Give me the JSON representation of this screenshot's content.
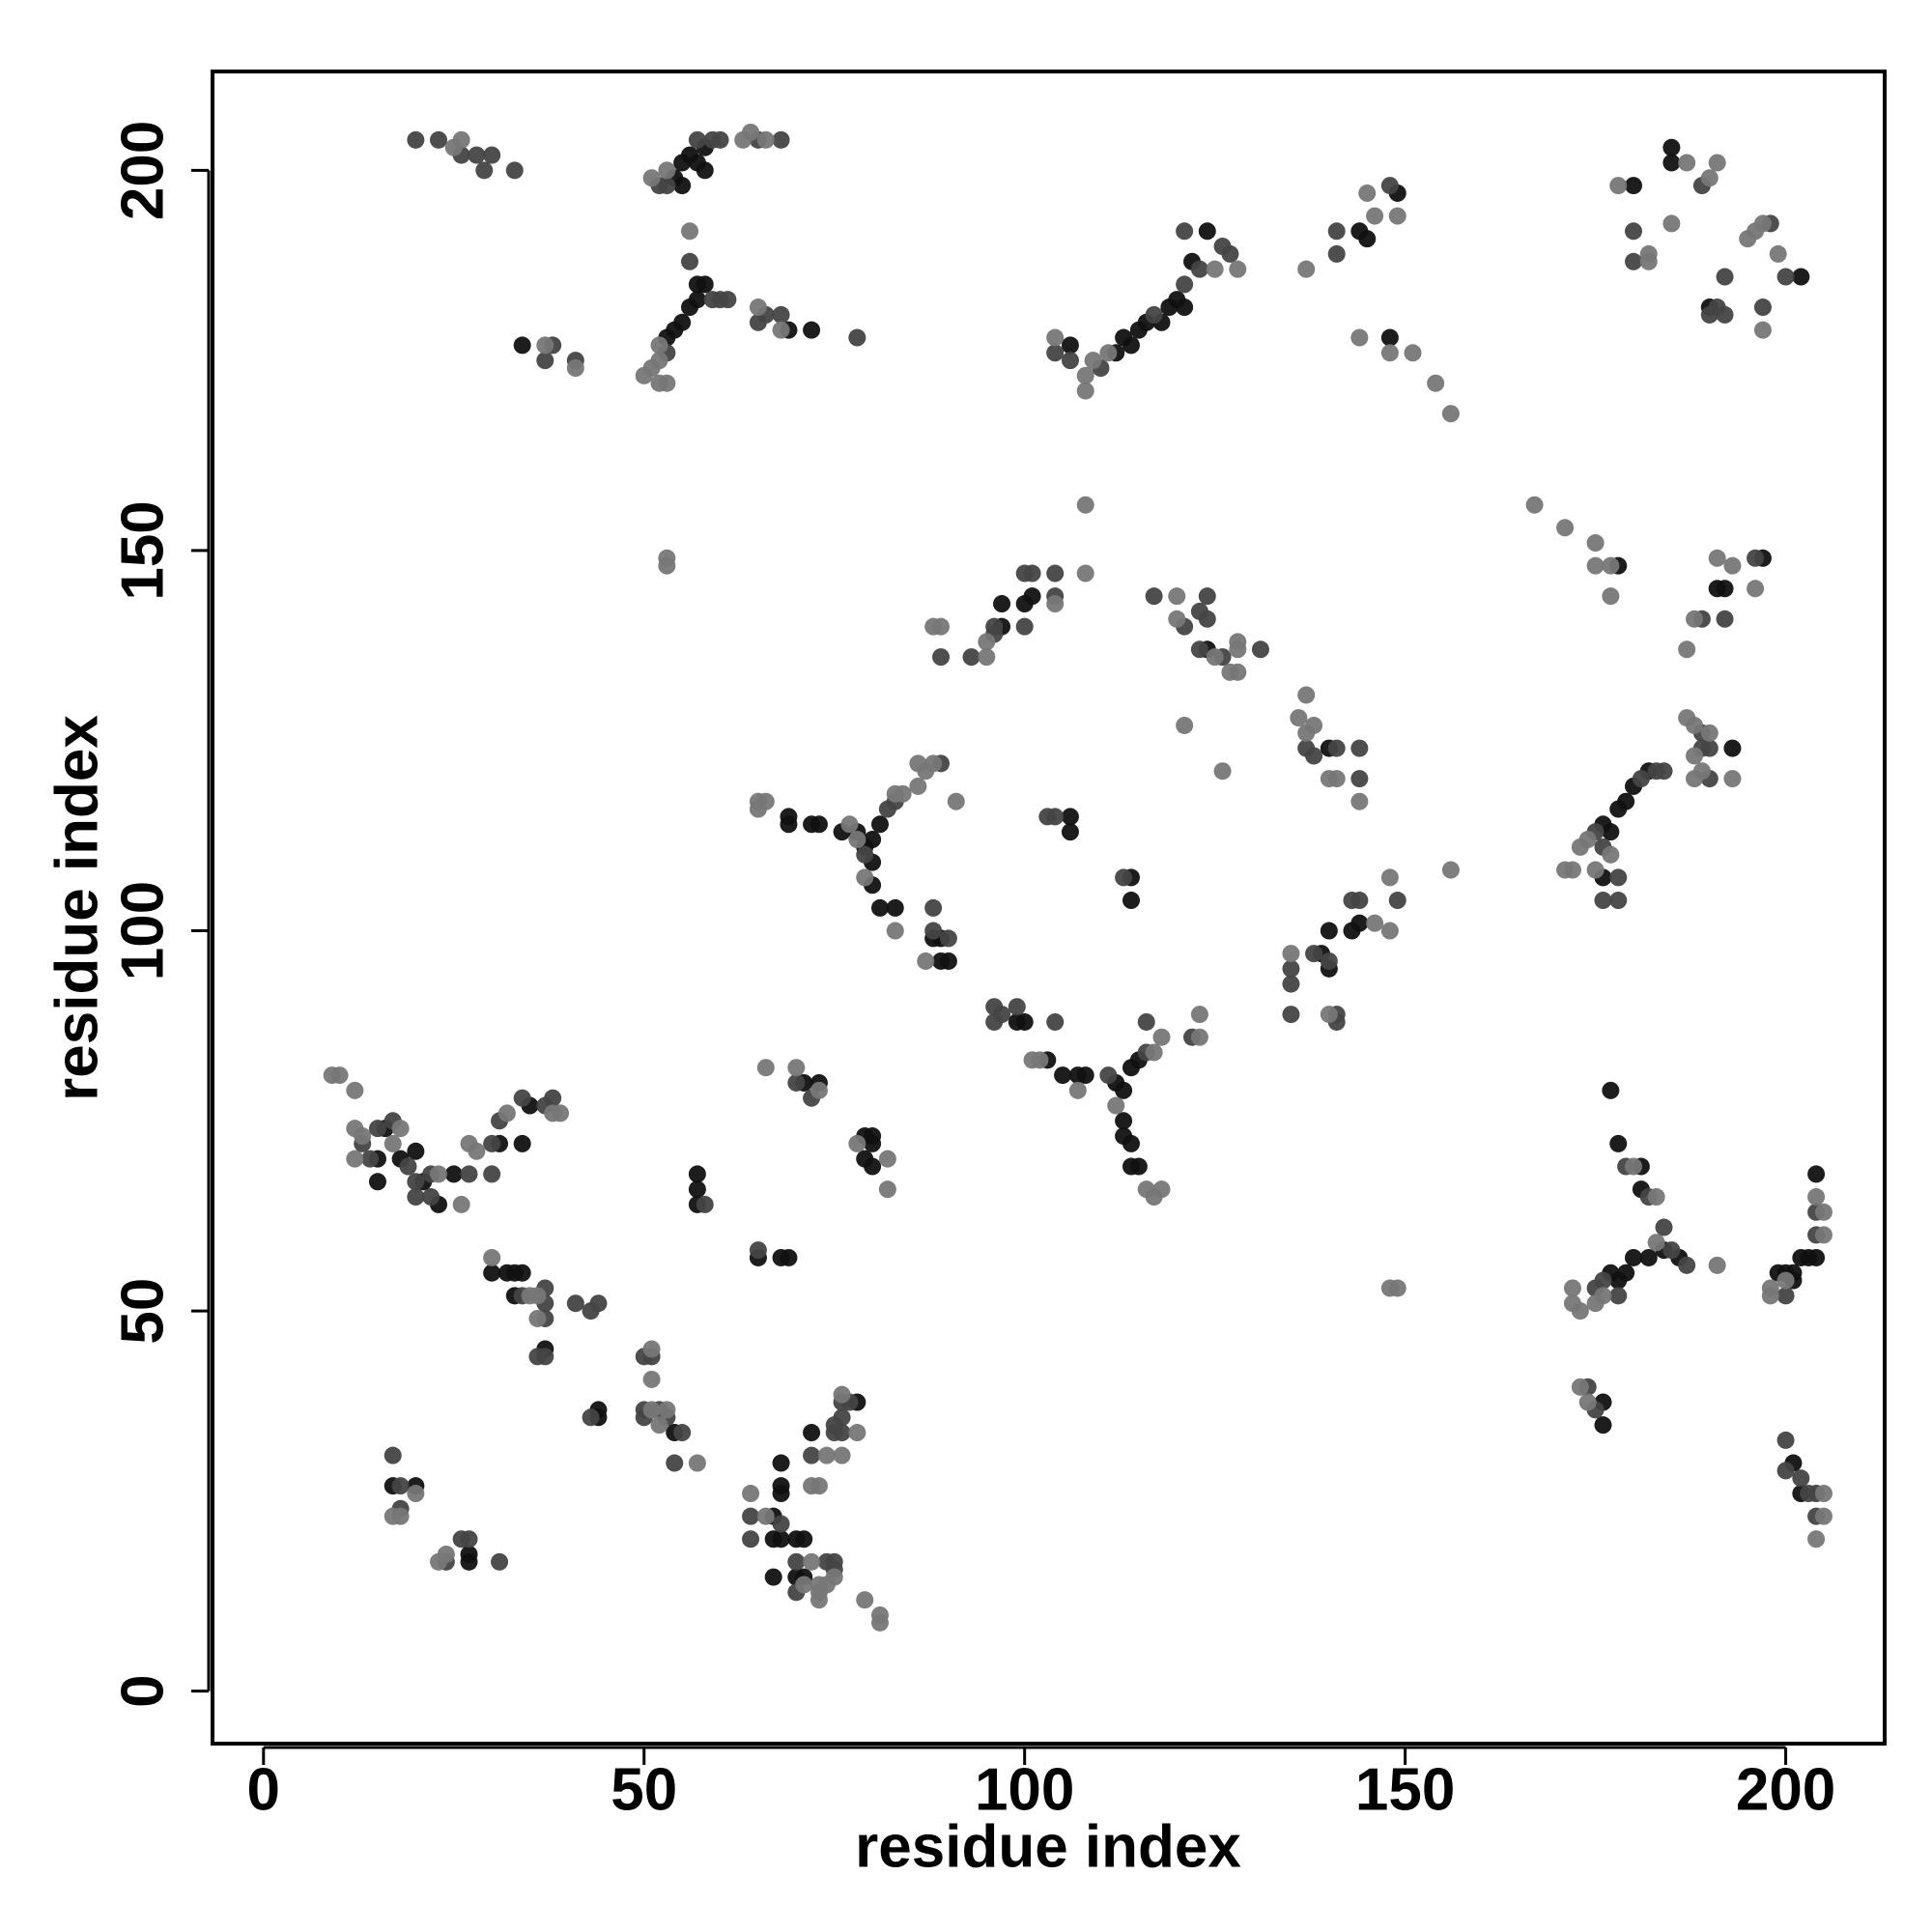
{
  "chart_data": {
    "type": "scatter",
    "xlabel": "residue index",
    "ylabel": "residue index",
    "xlim": [
      -6.7,
      213
    ],
    "ylim": [
      -6.9,
      213
    ],
    "xticks": [
      0,
      50,
      100,
      150,
      200
    ],
    "yticks": [
      0,
      50,
      100,
      150,
      200
    ],
    "series": [
      {
        "color": "#111111",
        "x": [
          34,
          54,
          55,
          55,
          56,
          57,
          58,
          58,
          57,
          58,
          57,
          56,
          55,
          54,
          53,
          69,
          72,
          106,
          112,
          113,
          114,
          115,
          116,
          118,
          119,
          120,
          121,
          122,
          124,
          144,
          145,
          149,
          148,
          180,
          185,
          185,
          190,
          202,
          97,
          97,
          100,
          101,
          124,
          140,
          178,
          191,
          192,
          197,
          193,
          176,
          177,
          178,
          179,
          180,
          182,
          176,
          69,
          69,
          72,
          73,
          76,
          78,
          79,
          80,
          81,
          80,
          80,
          81,
          83,
          88,
          89,
          89,
          90,
          106,
          106,
          114,
          114,
          99,
          100,
          103,
          105,
          107,
          108,
          112,
          113,
          114,
          115,
          113,
          113,
          114,
          114,
          115,
          139,
          140,
          140,
          143,
          144,
          177,
          178,
          181,
          181,
          184,
          186,
          182,
          180,
          179,
          178,
          177,
          176,
          176,
          199,
          200,
          201,
          201,
          202,
          203,
          204,
          204,
          201,
          202,
          15,
          16,
          18,
          15,
          20,
          21,
          25,
          31,
          35,
          34,
          23,
          30,
          32,
          33,
          34,
          33,
          37,
          44,
          44,
          54,
          57,
          57,
          57,
          17,
          20,
          27,
          27,
          67,
          67,
          68,
          68,
          68,
          68,
          70,
          71,
          71,
          70,
          72,
          78,
          67,
          65,
          68,
          69,
          71,
          73,
          79,
          80,
          80,
          79,
          80
        ],
        "values": [
          177,
          199,
          198,
          201,
          202,
          201,
          203,
          200,
          185,
          185,
          183,
          182,
          180,
          179,
          178,
          179,
          179,
          177,
          176,
          178,
          177,
          179,
          180,
          180,
          182,
          183,
          182,
          188,
          192,
          192,
          191,
          197,
          178,
          198,
          203,
          201,
          182,
          186,
          143,
          140,
          143,
          144,
          137,
          124,
          148,
          145,
          145,
          149,
          124,
          114,
          113,
          116,
          117,
          119,
          121,
          107,
          115,
          114,
          114,
          114,
          113,
          113,
          111,
          112,
          114,
          109,
          106,
          103,
          103,
          99,
          99,
          96,
          96,
          115,
          113,
          107,
          104,
          88,
          88,
          83,
          81,
          81,
          81,
          80,
          79,
          82,
          83,
          75,
          73,
          72,
          69,
          69,
          97,
          95,
          100,
          100,
          101,
          79,
          72,
          69,
          66,
          58,
          57,
          57,
          57,
          55,
          54,
          55,
          35,
          38,
          55,
          55,
          55,
          54,
          57,
          57,
          57,
          68,
          30,
          26,
          70,
          74,
          70,
          67,
          71,
          67,
          68,
          72,
          77,
          72,
          64,
          55,
          55,
          55,
          55,
          52,
          45,
          37,
          36,
          34,
          68,
          66,
          64,
          27,
          27,
          18,
          17,
          23,
          20,
          20,
          26,
          27,
          30,
          20,
          20,
          15,
          15,
          34,
          38,
          15,
          57,
          57,
          57,
          80,
          80,
          73,
          73,
          72,
          70,
          69
        ]
      },
      {
        "color": "#444444",
        "x": [
          20,
          23,
          26,
          28,
          29,
          30,
          33,
          37,
          38,
          41,
          52,
          53,
          57,
          59,
          60,
          65,
          68,
          56,
          53,
          59,
          60,
          61,
          65,
          66,
          68,
          78,
          104,
          110,
          117,
          121,
          121,
          123,
          126,
          127,
          106,
          141,
          141,
          148,
          180,
          180,
          189,
          190,
          191,
          192,
          192,
          198,
          197,
          200,
          89,
          93,
          96,
          96,
          100,
          100,
          101,
          104,
          104,
          117,
          121,
          123,
          124,
          124,
          123,
          126,
          131,
          137,
          138,
          141,
          144,
          144,
          189,
          192,
          196,
          189,
          189,
          190,
          190,
          175,
          181,
          183,
          184,
          176,
          178,
          176,
          178,
          82,
          83,
          89,
          79,
          88,
          88,
          90,
          103,
          104,
          113,
          96,
          96,
          97,
          99,
          104,
          111,
          116,
          116,
          122,
          135,
          135,
          135,
          138,
          140,
          143,
          144,
          149,
          141,
          141,
          179,
          182,
          184,
          185,
          187,
          176,
          175,
          178,
          174,
          175,
          200,
          204,
          204,
          200,
          200,
          202,
          203,
          204,
          204,
          13,
          14,
          15,
          17,
          19,
          20,
          22,
          22,
          20,
          27,
          30,
          30,
          31,
          34,
          37,
          38,
          34,
          37,
          37,
          37,
          37,
          36,
          41,
          43,
          44,
          43,
          50,
          50,
          50,
          51,
          52,
          53,
          55,
          54,
          58,
          17,
          18,
          18,
          24,
          26,
          27,
          31,
          64,
          64,
          68,
          70,
          70,
          72,
          75,
          76,
          75,
          76,
          76,
          77,
          74,
          75,
          75,
          65,
          70,
          72
        ],
        "values": [
          204,
          204,
          202,
          202,
          200,
          202,
          200,
          175,
          177,
          175,
          198,
          198,
          204,
          204,
          204,
          204,
          204,
          188,
          176,
          183,
          183,
          183,
          180,
          181,
          181,
          178,
          176,
          174,
          181,
          185,
          192,
          187,
          190,
          189,
          175,
          192,
          189,
          198,
          192,
          188,
          198,
          181,
          182,
          186,
          181,
          193,
          182,
          186,
          136,
          136,
          140,
          139,
          140,
          147,
          147,
          147,
          144,
          144,
          140,
          142,
          141,
          144,
          137,
          136,
          137,
          124,
          123,
          124,
          124,
          120,
          141,
          141,
          149,
          126,
          124,
          124,
          120,
          113,
          120,
          121,
          121,
          111,
          107,
          104,
          104,
          116,
          117,
          122,
          110,
          100,
          103,
          99,
          115,
          115,
          107,
          90,
          88,
          89,
          90,
          88,
          81,
          84,
          88,
          86,
          95,
          93,
          89,
          97,
          96,
          104,
          104,
          104,
          89,
          88,
          69,
          65,
          61,
          58,
          56,
          54,
          53,
          52,
          40,
          37,
          52,
          60,
          63,
          33,
          29,
          28,
          26,
          26,
          23,
          72,
          70,
          74,
          75,
          69,
          67,
          68,
          65,
          65,
          68,
          72,
          68,
          75,
          78,
          77,
          78,
          52,
          51,
          53,
          49,
          44,
          44,
          51,
          50,
          51,
          36,
          36,
          37,
          44,
          44,
          37,
          36,
          34,
          30,
          64,
          31,
          27,
          24,
          17,
          20,
          20,
          17,
          23,
          20,
          22,
          17,
          13,
          31,
          34,
          34,
          35,
          36,
          38,
          38,
          17,
          16,
          17,
          58,
          80,
          78
        ]
      },
      {
        "color": "#777777",
        "x": [
          25,
          26,
          37,
          41,
          51,
          53,
          63,
          64,
          66,
          56,
          52,
          51,
          50,
          52,
          53,
          52,
          65,
          68,
          104,
          108,
          108,
          111,
          125,
          128,
          109,
          137,
          145,
          146,
          149,
          144,
          148,
          151,
          154,
          156,
          178,
          182,
          182,
          187,
          185,
          190,
          191,
          195,
          196,
          197,
          197,
          199,
          108,
          108,
          53,
          53,
          88,
          89,
          95,
          95,
          104,
          120,
          120,
          125,
          127,
          128,
          128,
          128,
          121,
          126,
          136,
          137,
          137,
          138,
          140,
          141,
          144,
          167,
          171,
          175,
          175,
          177,
          177,
          187,
          188,
          191,
          193,
          196,
          187,
          188,
          190,
          188,
          189,
          188,
          193,
          171,
          172,
          173,
          174,
          177,
          175,
          156,
          65,
          66,
          65,
          77,
          78,
          83,
          84,
          86,
          86,
          87,
          88,
          79,
          83,
          87,
          91,
          148,
          149,
          101,
          102,
          107,
          117,
          118,
          123,
          123,
          112,
          116,
          118,
          117,
          135,
          146,
          148,
          148,
          140,
          180,
          183,
          183,
          176,
          172,
          172,
          173,
          175,
          173,
          174,
          191,
          198,
          200,
          198,
          204,
          205,
          205,
          205,
          205,
          204,
          9,
          10,
          12,
          12,
          13,
          12,
          17,
          18,
          23,
          26,
          27,
          28,
          32,
          38,
          39,
          30,
          35,
          36,
          36,
          51,
          51,
          51,
          52,
          53,
          57,
          17,
          18,
          20,
          23,
          24,
          64,
          66,
          71,
          72,
          73,
          72,
          73,
          74,
          76,
          78,
          76,
          74,
          73,
          73,
          75,
          79,
          81,
          81,
          66,
          70,
          73,
          78,
          82,
          82
        ],
        "values": [
          203,
          204,
          177,
          174,
          199,
          200,
          204,
          205,
          204,
          192,
          177,
          174,
          173,
          172,
          172,
          175,
          182,
          179,
          178,
          173,
          171,
          176,
          187,
          187,
          175,
          187,
          197,
          194,
          194,
          178,
          176,
          176,
          172,
          168,
          198,
          188,
          189,
          201,
          193,
          199,
          201,
          191,
          192,
          193,
          179,
          189,
          156,
          147,
          149,
          148,
          140,
          140,
          138,
          136,
          143,
          144,
          141,
          136,
          134,
          134,
          138,
          137,
          127,
          121,
          128,
          131,
          126,
          127,
          120,
          120,
          117,
          156,
          153,
          151,
          148,
          148,
          144,
          137,
          141,
          149,
          148,
          145,
          128,
          127,
          126,
          123,
          121,
          120,
          120,
          108,
          108,
          111,
          112,
          110,
          108,
          108,
          117,
          117,
          116,
          114,
          112,
          118,
          118,
          119,
          122,
          121,
          122,
          107,
          100,
          96,
          117,
          53,
          53,
          83,
          83,
          79,
          84,
          86,
          86,
          89,
          77,
          66,
          66,
          65,
          97,
          101,
          100,
          107,
          89,
          69,
          65,
          59,
          52,
          53,
          51,
          50,
          51,
          40,
          38,
          56,
          53,
          54,
          52,
          65,
          63,
          60,
          26,
          23,
          20,
          81,
          81,
          79,
          74,
          73,
          70,
          72,
          74,
          68,
          64,
          72,
          71,
          76,
          76,
          76,
          57,
          52,
          52,
          49,
          45,
          41,
          37,
          35,
          37,
          30,
          23,
          23,
          26,
          17,
          18,
          26,
          23,
          14,
          17,
          14,
          27,
          27,
          31,
          39,
          34,
          31,
          14,
          13,
          12,
          15,
          12,
          10,
          9,
          82,
          82,
          79,
          72,
          70,
          66
        ]
      }
    ]
  }
}
